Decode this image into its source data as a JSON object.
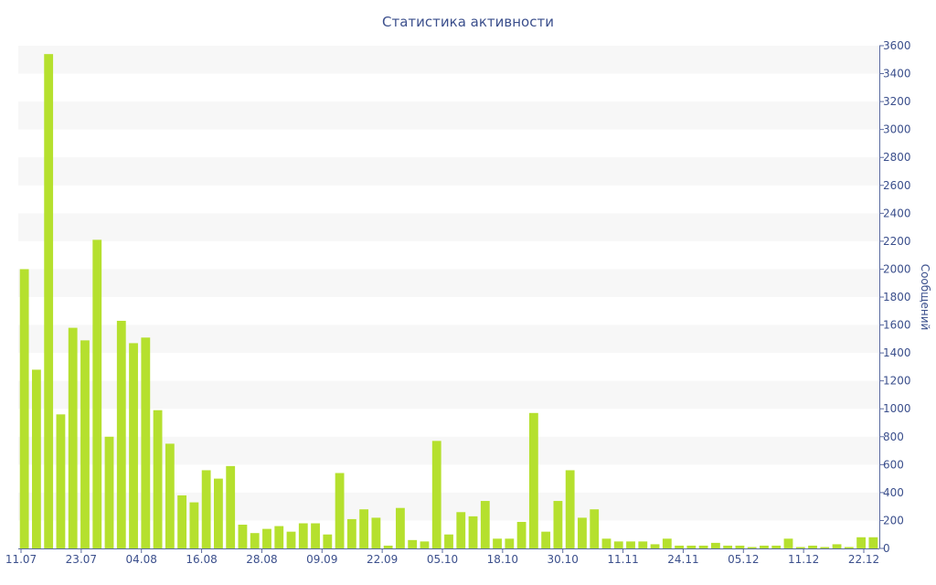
{
  "chart_data": {
    "type": "bar",
    "title": "Статистика активности",
    "ylabel": "Сообщений",
    "xlabel": "",
    "ylim": [
      0,
      3600
    ],
    "y_ticks": [
      0,
      200,
      400,
      600,
      800,
      1000,
      1200,
      1400,
      1600,
      1800,
      2000,
      2200,
      2400,
      2600,
      2800,
      3000,
      3200,
      3400,
      3600
    ],
    "x_tick_labels": [
      "11.07",
      "23.07",
      "04.08",
      "16.08",
      "28.08",
      "09.09",
      "22.09",
      "05.10",
      "18.10",
      "30.10",
      "11.11",
      "24.11",
      "05.12",
      "11.12",
      "22.12"
    ],
    "y_axis_position": "right",
    "grid": "horizontal alternating bands",
    "bar_color": "#b5e02e",
    "band_color": "#f7f7f7",
    "series": [
      {
        "values": [
          2000,
          1280,
          3540,
          960,
          1580,
          1490,
          2210,
          800,
          1630,
          1470,
          1510,
          990,
          750,
          380,
          330,
          560,
          500,
          590,
          170,
          110,
          140,
          160,
          120,
          180,
          180,
          100,
          540,
          210,
          280,
          220,
          20,
          290,
          60,
          50,
          770,
          100,
          260,
          230,
          340,
          70,
          70,
          190,
          970,
          120,
          340,
          560,
          220,
          280,
          70,
          50,
          50,
          50,
          30,
          70,
          20,
          20,
          20,
          40,
          20,
          20,
          10,
          20,
          20,
          70,
          10,
          20,
          10,
          30,
          10,
          80,
          80
        ]
      }
    ]
  }
}
